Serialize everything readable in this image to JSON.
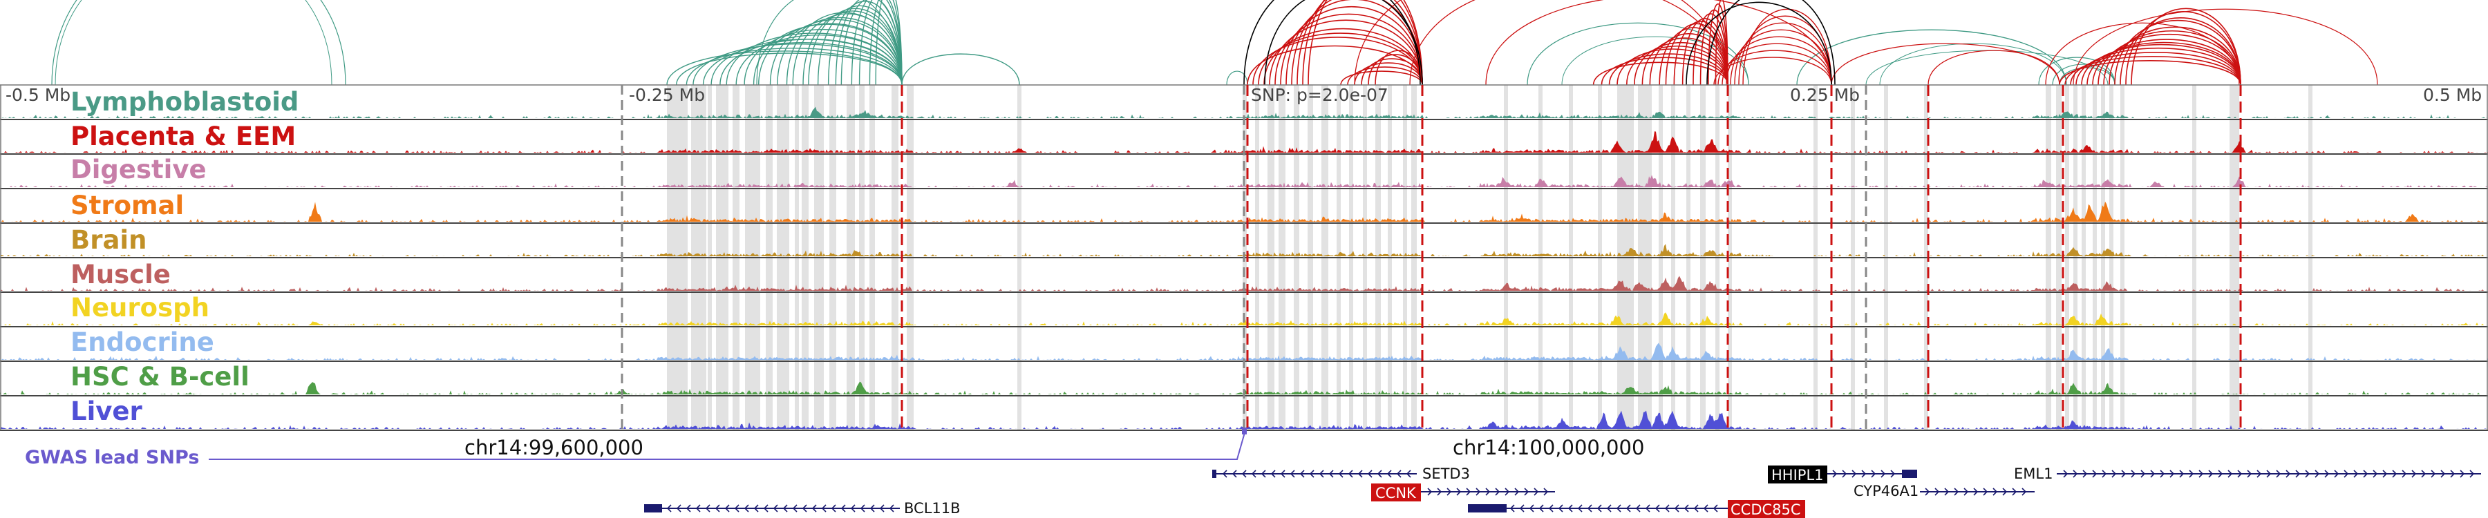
{
  "tracks": [
    {
      "label": "Lymphoblastoid",
      "color": "#4a9a86"
    },
    {
      "label": "Placenta & EEM",
      "color": "#cc1111"
    },
    {
      "label": "Digestive",
      "color": "#c77ea8"
    },
    {
      "label": "Stromal",
      "color": "#f07a17"
    },
    {
      "label": "Brain",
      "color": "#c19027"
    },
    {
      "label": "Muscle",
      "color": "#bd5f5f"
    },
    {
      "label": "Neurosph",
      "color": "#f2d322"
    },
    {
      "label": "Endocrine",
      "color": "#93bbef"
    },
    {
      "label": "HSC & B-cell",
      "color": "#4f9e47"
    },
    {
      "label": "Liver",
      "color": "#5050d6"
    }
  ],
  "ruler": {
    "left": "-0.5 Mb",
    "left_mid": "-0.25 Mb",
    "snp": "SNP: p=2.0e-07",
    "right_mid": "0.25 Mb",
    "right": "0.5 Mb"
  },
  "gwas_label": "GWAS lead SNPs",
  "gwas_color": "#6a5acd",
  "positions": [
    "chr14:99,600,000",
    "chr14:100,000,000"
  ],
  "genes": [
    {
      "name": "SETD3",
      "style": "plain"
    },
    {
      "name": "CCNK",
      "style": "red"
    },
    {
      "name": "HHIPL1",
      "style": "black"
    },
    {
      "name": "CYP46A1",
      "style": "plain"
    },
    {
      "name": "EML1",
      "style": "plain"
    },
    {
      "name": "BCL11B",
      "style": "plain"
    },
    {
      "name": "CCDC85C",
      "style": "red"
    }
  ],
  "colors": {
    "teal_arc": "#3f9a84",
    "red_arc": "#cc1111",
    "black_arc": "#000000",
    "gene": "#1a1a6e"
  }
}
